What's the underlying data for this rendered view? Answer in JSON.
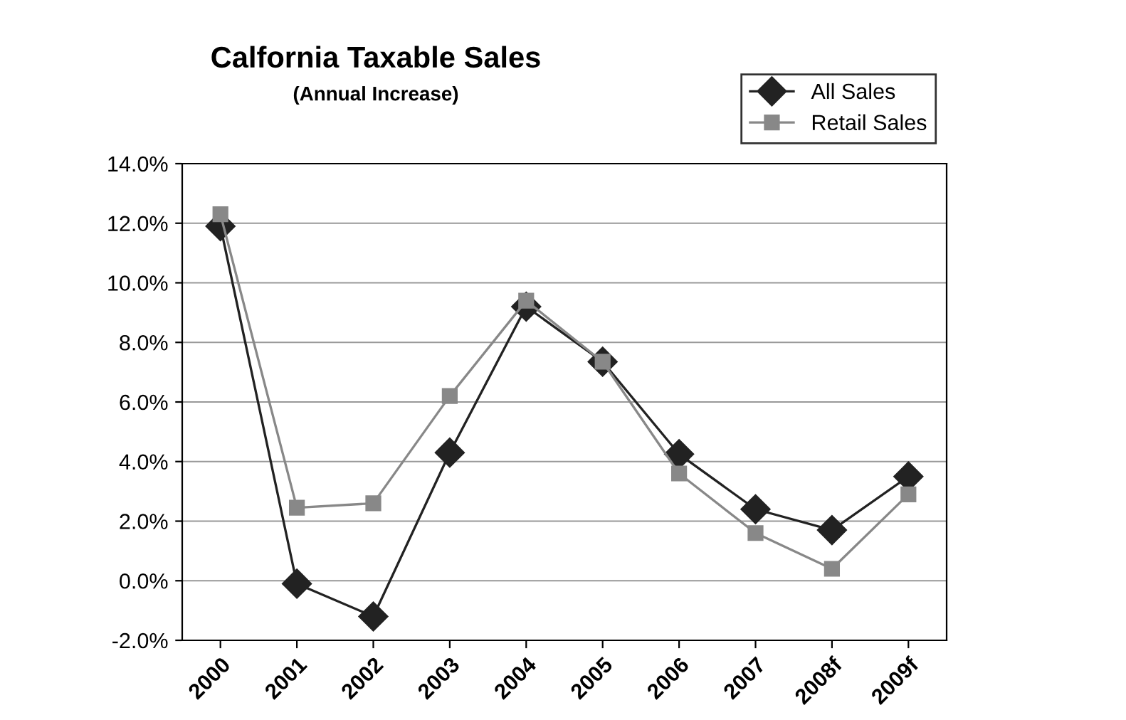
{
  "chart_data": {
    "type": "line",
    "title": "Calfornia Taxable Sales",
    "subtitle": "(Annual Increase)",
    "categories": [
      "2000",
      "2001",
      "2002",
      "2003",
      "2004",
      "2005",
      "2006",
      "2007",
      "2008f",
      "2009f"
    ],
    "series": [
      {
        "name": "All Sales",
        "color": "#222222",
        "marker": "diamond",
        "values": [
          11.9,
          -0.1,
          -1.2,
          4.3,
          9.2,
          7.35,
          4.25,
          2.4,
          1.7,
          3.5
        ]
      },
      {
        "name": "Retail Sales",
        "color": "#888888",
        "marker": "square",
        "values": [
          12.3,
          2.45,
          2.6,
          6.2,
          9.4,
          7.35,
          3.6,
          1.6,
          0.4,
          2.9
        ]
      }
    ],
    "ylim": [
      -2,
      14
    ],
    "yticks": [
      {
        "value": -2,
        "label": "-2.0%"
      },
      {
        "value": 0,
        "label": "0.0%"
      },
      {
        "value": 2,
        "label": "2.0%"
      },
      {
        "value": 4,
        "label": "4.0%"
      },
      {
        "value": 6,
        "label": "6.0%"
      },
      {
        "value": 8,
        "label": "8.0%"
      },
      {
        "value": 10,
        "label": "10.0%"
      },
      {
        "value": 12,
        "label": "12.0%"
      },
      {
        "value": 14,
        "label": "14.0%"
      }
    ],
    "grid": "y",
    "legend": "top right",
    "line_style": "solid"
  }
}
